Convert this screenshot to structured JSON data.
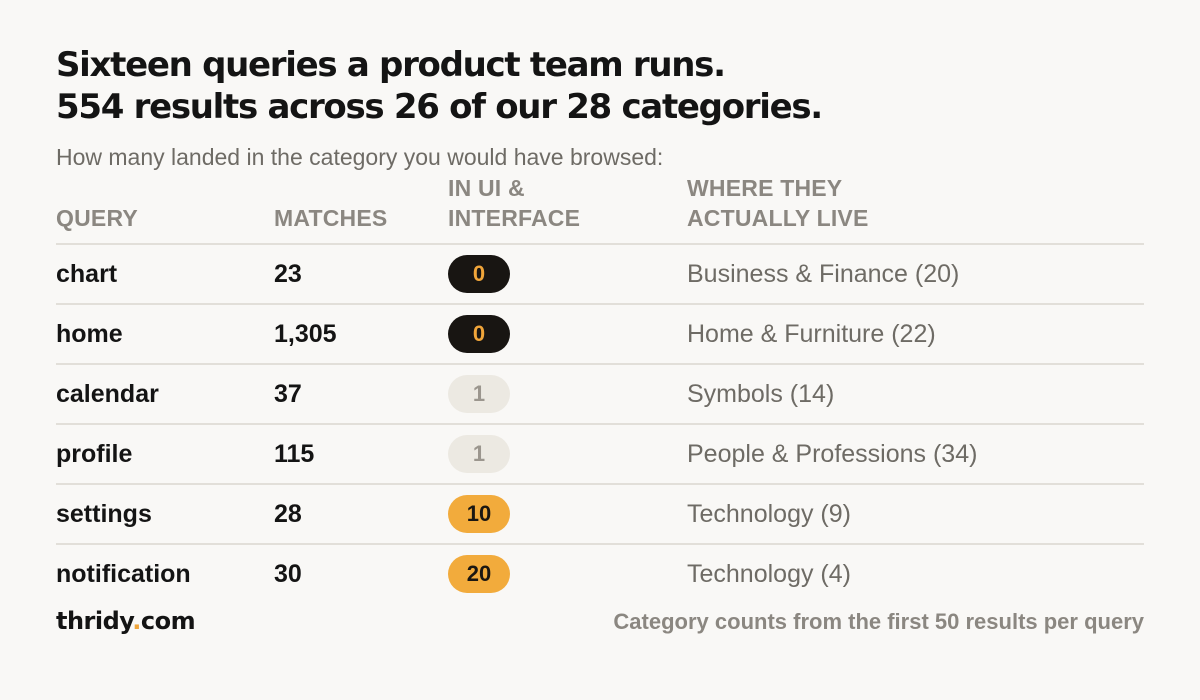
{
  "title_line1": "Sixteen queries a product team runs.",
  "title_line2": "554 results across 26 of our 28 categories.",
  "subtitle": "How many landed in the category you would have browsed:",
  "headers": {
    "query": "QUERY",
    "matches": "MATCHES",
    "ui_line1": "IN UI &",
    "ui_line2": "INTERFACE",
    "live_line1": "WHERE THEY",
    "live_line2": "ACTUALLY LIVE"
  },
  "rows": [
    {
      "query": "chart",
      "matches": "23",
      "in_ui": "0",
      "level": "zero",
      "live": "Business & Finance (20)"
    },
    {
      "query": "home",
      "matches": "1,305",
      "in_ui": "0",
      "level": "zero",
      "live": "Home & Furniture (22)"
    },
    {
      "query": "calendar",
      "matches": "37",
      "in_ui": "1",
      "level": "low",
      "live": "Symbols (14)"
    },
    {
      "query": "profile",
      "matches": "115",
      "in_ui": "1",
      "level": "low",
      "live": "People & Professions (34)"
    },
    {
      "query": "settings",
      "matches": "28",
      "in_ui": "10",
      "level": "high",
      "live": "Technology (9)"
    },
    {
      "query": "notification",
      "matches": "30",
      "in_ui": "20",
      "level": "high",
      "live": "Technology (4)"
    }
  ],
  "brand": {
    "name": "thridy",
    "dot": ".",
    "tld": "com"
  },
  "footnote": "Category counts from the first 50 results per query",
  "colors": {
    "accent": "#f0a53a",
    "dark_badge": "#181512",
    "light_badge": "#ece9e2",
    "background": "#f9f8f6"
  }
}
